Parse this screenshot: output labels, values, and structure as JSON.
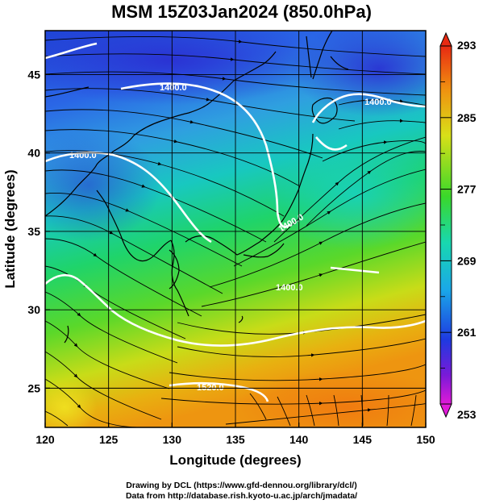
{
  "title": "MSM 15Z03Jan2024 (850.0hPa)",
  "xlabel": "Longitude (degrees)",
  "ylabel": "Latitude  (degrees)",
  "x_ticks": [
    "120",
    "125",
    "130",
    "135",
    "140",
    "145",
    "150"
  ],
  "y_ticks": [
    "45",
    "40",
    "35",
    "30",
    "25"
  ],
  "x_tick_values": [
    120,
    125,
    130,
    135,
    140,
    145,
    150
  ],
  "y_tick_values": [
    45,
    40,
    35,
    30,
    25
  ],
  "xlim": [
    120,
    150
  ],
  "ylim": [
    22.5,
    47.8
  ],
  "colorbar": {
    "labels": [
      "293",
      "285",
      "277",
      "269",
      "261",
      "253"
    ],
    "values": [
      293,
      285,
      277,
      269,
      261,
      253
    ],
    "range": [
      253,
      293
    ]
  },
  "contour_labels": [
    "1400.0",
    "1400.0",
    "1400.0",
    "1400.0",
    "1400.0",
    "1520.0"
  ],
  "credit_line_1": "Drawing by DCL (https://www.gfd-dennou.org/library/dcl/)",
  "credit_line_2": "Data from http://database.rish.kyoto-u.ac.jp/arch/jmadata/"
}
